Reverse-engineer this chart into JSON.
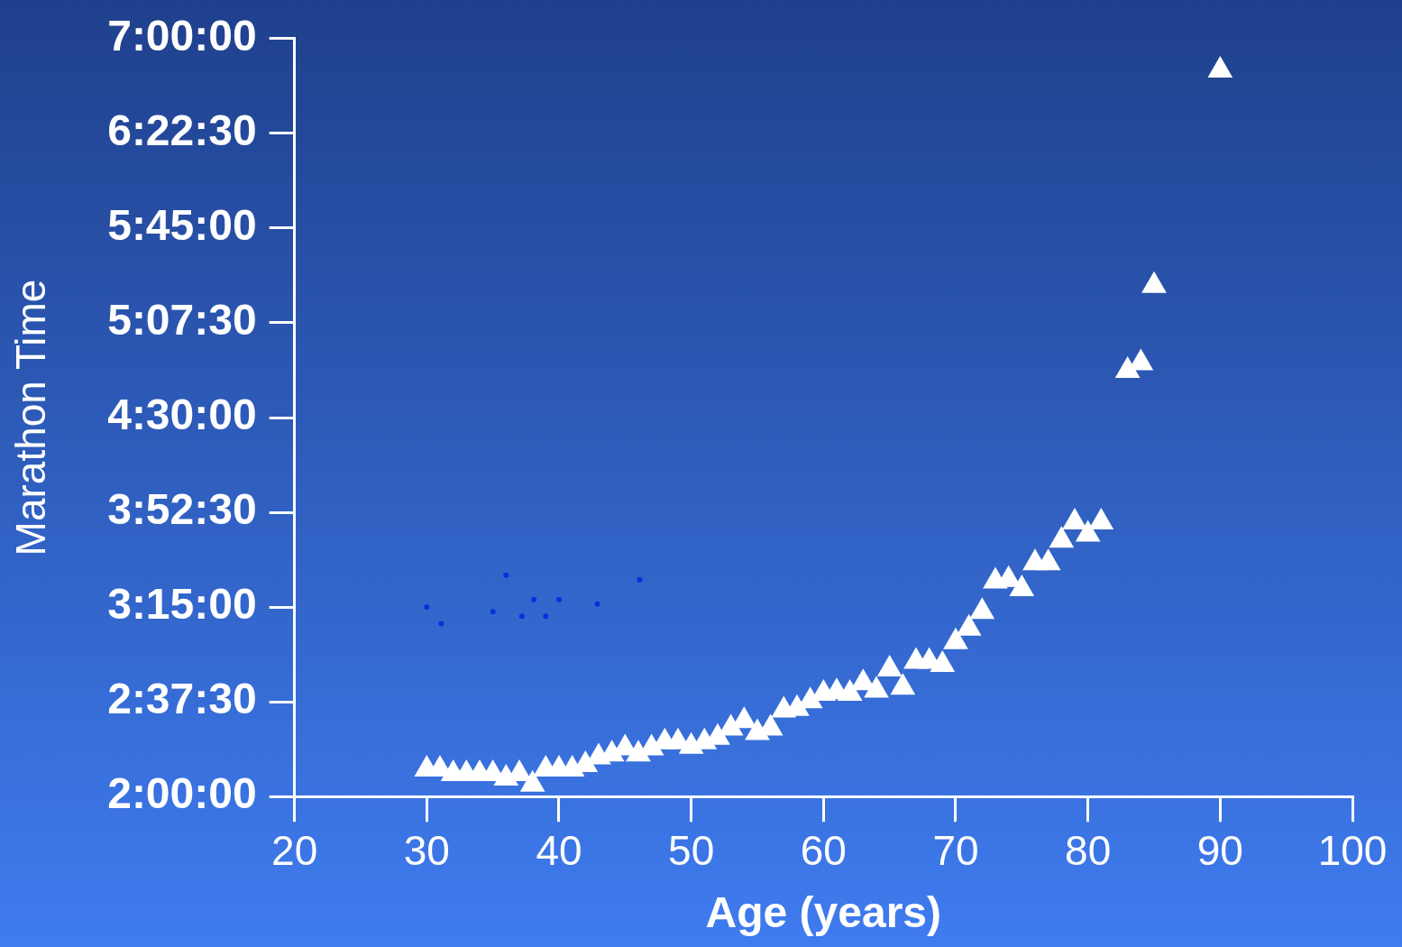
{
  "chart_data": {
    "type": "scatter",
    "xlabel": "Age (years)",
    "ylabel": "Marathon Time",
    "xlim": [
      20,
      100
    ],
    "xticks": [
      20,
      30,
      40,
      50,
      60,
      70,
      80,
      90,
      100
    ],
    "ylim": [
      2,
      7
    ],
    "yticks": [
      {
        "value": 2,
        "label": "2:00:00"
      },
      {
        "value": 2.625,
        "label": "2:37:30"
      },
      {
        "value": 3.25,
        "label": "3:15:00"
      },
      {
        "value": 3.875,
        "label": "3:52:30"
      },
      {
        "value": 4.5,
        "label": "4:30:00"
      },
      {
        "value": 5.125,
        "label": "5:07:30"
      },
      {
        "value": 5.75,
        "label": "5:45:00"
      },
      {
        "value": 6.375,
        "label": "6:22:30"
      },
      {
        "value": 7,
        "label": "7:00:00"
      }
    ],
    "legend": false,
    "series": [
      {
        "type": "scatter",
        "marker": "triangle",
        "color": "#ffffff",
        "x": [
          30,
          31,
          32,
          33,
          34,
          35,
          36,
          37,
          38,
          39,
          40,
          41,
          42,
          43,
          44,
          45,
          46,
          47,
          48,
          49,
          50,
          51,
          52,
          53,
          54,
          55,
          56,
          57,
          58,
          59,
          60,
          61,
          62,
          63,
          64,
          65,
          66,
          67,
          68,
          69,
          70,
          71,
          72,
          73,
          74,
          75,
          76,
          77,
          78,
          79,
          80,
          81,
          83,
          84,
          85,
          90
        ],
        "values": [
          2.18,
          2.18,
          2.15,
          2.15,
          2.15,
          2.15,
          2.12,
          2.15,
          2.08,
          2.18,
          2.18,
          2.18,
          2.21,
          2.26,
          2.28,
          2.32,
          2.28,
          2.32,
          2.36,
          2.36,
          2.33,
          2.36,
          2.39,
          2.45,
          2.5,
          2.42,
          2.45,
          2.57,
          2.58,
          2.63,
          2.68,
          2.69,
          2.68,
          2.75,
          2.7,
          2.84,
          2.72,
          2.89,
          2.89,
          2.87,
          3.02,
          3.11,
          3.22,
          3.42,
          3.43,
          3.37,
          3.54,
          3.54,
          3.69,
          3.81,
          3.73,
          3.81,
          4.81,
          4.86,
          5.37,
          6.79
        ]
      },
      {
        "type": "scatter",
        "marker": "circle",
        "color": "#0033dd",
        "x": [
          30,
          31.1,
          35,
          36,
          37.2,
          38.1,
          39,
          40,
          42.9,
          46.1
        ],
        "values": [
          3.25,
          3.14,
          3.22,
          3.46,
          3.19,
          3.3,
          3.19,
          3.3,
          3.27,
          3.43
        ]
      }
    ]
  }
}
